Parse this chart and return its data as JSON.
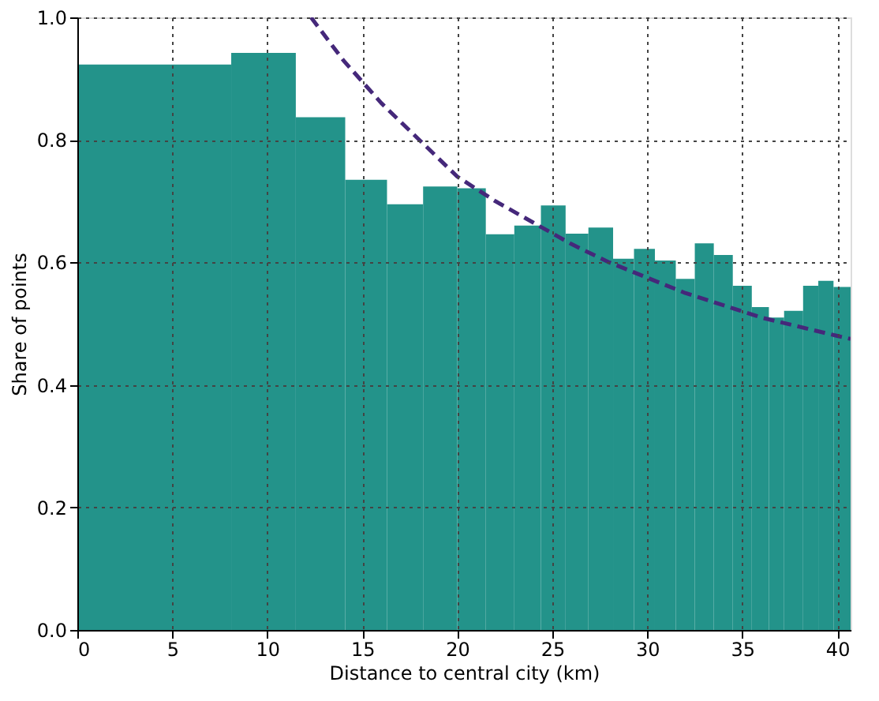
{
  "chart_data": {
    "type": "histogram",
    "xlabel": "Distance to central city (km)",
    "ylabel": "Share of points",
    "bins": [
      0,
      8.1,
      11.5,
      14.1,
      16.3,
      18.2,
      20.0,
      21.5,
      23.0,
      24.4,
      25.7,
      26.9,
      28.2,
      29.3,
      30.4,
      31.5,
      32.5,
      33.5,
      34.5,
      35.5,
      36.4,
      37.2,
      38.2,
      39.0,
      39.8,
      40.7
    ],
    "values": [
      0.923,
      0.942,
      0.837,
      0.735,
      0.695,
      0.724,
      0.721,
      0.646,
      0.66,
      0.693,
      0.647,
      0.657,
      0.606,
      0.622,
      0.603,
      0.573,
      0.631,
      0.612,
      0.562,
      0.527,
      0.51,
      0.521,
      0.562,
      0.57,
      0.56
    ],
    "color": "#23938a",
    "series": [
      {
        "type": "line",
        "color": "#45287a",
        "line_style": "dashed",
        "marker": "none",
        "x": [
          12.3,
          14,
          16,
          18,
          20,
          22,
          24,
          26,
          28,
          30,
          32,
          34,
          36,
          38,
          40,
          40.7
        ],
        "values": [
          1.0,
          0.93,
          0.86,
          0.8,
          0.74,
          0.7,
          0.665,
          0.63,
          0.6,
          0.575,
          0.55,
          0.53,
          0.51,
          0.495,
          0.48,
          0.475
        ]
      }
    ],
    "xlim": [
      0,
      40.7
    ],
    "xticks": [
      0,
      5,
      10,
      15,
      20,
      25,
      30,
      35,
      40
    ],
    "ylim": [
      0,
      1.0
    ],
    "yticks": [
      {
        "value": 0,
        "label": "0.0"
      },
      {
        "value": 0.2,
        "label": "0.2"
      },
      {
        "value": 0.4,
        "label": "0.4"
      },
      {
        "value": 0.6,
        "label": "0.6"
      },
      {
        "value": 0.8,
        "label": "0.8"
      },
      {
        "value": 1.0,
        "label": "1.0"
      }
    ],
    "grid": true
  }
}
